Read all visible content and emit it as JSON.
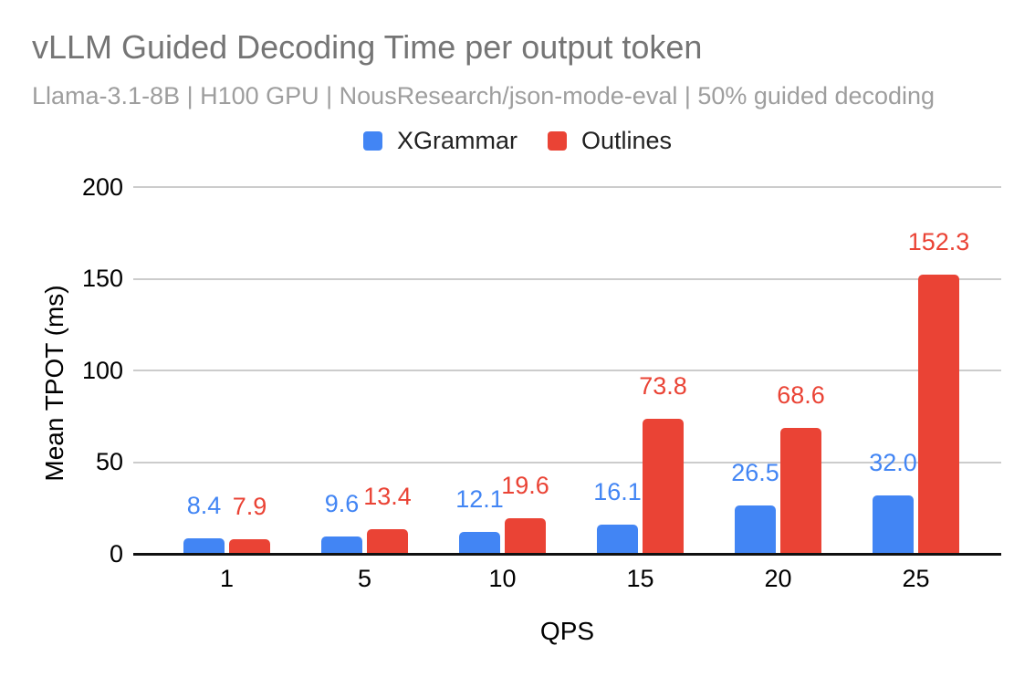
{
  "chart_data": {
    "type": "bar",
    "title": "vLLM Guided Decoding Time per output token",
    "subtitle": "Llama-3.1-8B | H100 GPU | NousResearch/json-mode-eval | 50% guided decoding",
    "xlabel": "QPS",
    "ylabel": "Mean TPOT (ms)",
    "categories": [
      "1",
      "5",
      "10",
      "15",
      "20",
      "25"
    ],
    "series": [
      {
        "name": "XGrammar",
        "color": "#4285F4",
        "values": [
          8.4,
          9.6,
          12.1,
          16.1,
          26.5,
          32.0
        ],
        "labels": [
          "8.4",
          "9.6",
          "12.1",
          "16.1",
          "26.5",
          "32.0"
        ]
      },
      {
        "name": "Outlines",
        "color": "#EA4335",
        "values": [
          7.9,
          13.4,
          19.6,
          73.8,
          68.6,
          152.3
        ],
        "labels": [
          "7.9",
          "13.4",
          "19.6",
          "73.8",
          "68.6",
          "152.3"
        ]
      }
    ],
    "ylim": [
      0,
      200
    ],
    "yticks": [
      0,
      50,
      100,
      150,
      200
    ],
    "grid": true,
    "legend_position": "top"
  },
  "palette": {
    "title_text": "#757575",
    "subtitle_text": "#9E9E9E",
    "axis_text": "#000000",
    "gridline": "#CCCCCC",
    "baseline": "#111111",
    "background": "#FFFFFF"
  }
}
